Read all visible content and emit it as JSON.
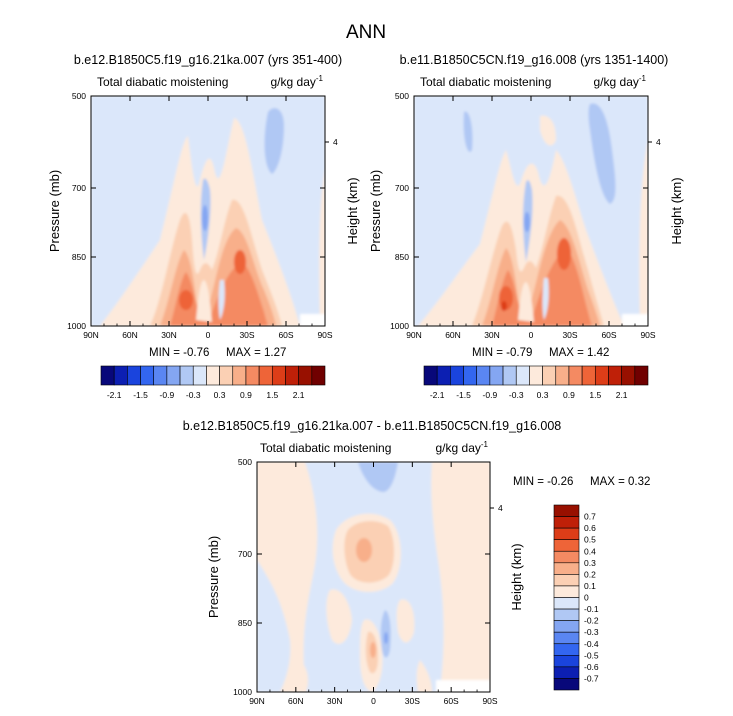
{
  "figure": {
    "title": "ANN"
  },
  "chart_data": [
    {
      "type": "heatmap",
      "title": "b.e12.B1850C5.f19_g16.21ka.007 (yrs 351-400)",
      "left_label": "Total diabatic moistening",
      "right_label": "g/kg day",
      "right_label_sup": "-1",
      "ylabel": "Pressure (mb)",
      "ylabel_right": "Height (km)",
      "x_ticks": [
        "90N",
        "60N",
        "30N",
        "0",
        "30S",
        "60S",
        "90S"
      ],
      "x_values": [
        90,
        60,
        30,
        0,
        -30,
        -60,
        -90
      ],
      "y_ticks": [
        "500",
        "700",
        "850",
        "1000"
      ],
      "y_values": [
        500,
        700,
        850,
        1000
      ],
      "ylim": [
        500,
        1000
      ],
      "right_ticks": [
        "4"
      ],
      "right_tick_values": [
        600
      ],
      "min_label": "MIN =  -0.76",
      "max_label": "MAX =   1.27"
    },
    {
      "type": "heatmap",
      "title": "b.e11.B1850C5CN.f19_g16.008 (yrs 1351-1400)",
      "left_label": "Total diabatic moistening",
      "right_label": "g/kg day",
      "right_label_sup": "-1",
      "ylabel": "Pressure (mb)",
      "ylabel_right": "Height (km)",
      "x_ticks": [
        "90N",
        "60N",
        "30N",
        "0",
        "30S",
        "60S",
        "90S"
      ],
      "x_values": [
        90,
        60,
        30,
        0,
        -30,
        -60,
        -90
      ],
      "y_ticks": [
        "500",
        "700",
        "850",
        "1000"
      ],
      "y_values": [
        500,
        700,
        850,
        1000
      ],
      "ylim": [
        500,
        1000
      ],
      "right_ticks": [
        "4"
      ],
      "right_tick_values": [
        600
      ],
      "min_label": "MIN =  -0.79",
      "max_label": "MAX =   1.42"
    },
    {
      "type": "heatmap",
      "title": "b.e12.B1850C5.f19_g16.21ka.007 - b.e11.B1850C5CN.f19_g16.008",
      "left_label": "Total diabatic moistening",
      "right_label": "g/kg day",
      "right_label_sup": "-1",
      "ylabel": "Pressure (mb)",
      "ylabel_right": "Height (km)",
      "x_ticks": [
        "90N",
        "60N",
        "30N",
        "0",
        "30S",
        "60S",
        "90S"
      ],
      "x_values": [
        90,
        60,
        30,
        0,
        -30,
        -60,
        -90
      ],
      "y_ticks": [
        "500",
        "700",
        "850",
        "1000"
      ],
      "y_values": [
        500,
        700,
        850,
        1000
      ],
      "ylim": [
        500,
        1000
      ],
      "right_ticks": [
        "4"
      ],
      "right_tick_values": [
        600
      ],
      "min_label": "MIN =  -0.26",
      "max_label": "MAX =   0.32"
    }
  ],
  "colorbars": {
    "top": {
      "colors": [
        "#08087a",
        "#0c1fb2",
        "#1a44dd",
        "#3366f0",
        "#5a86f2",
        "#84a6f2",
        "#b0c8f4",
        "#dbe7fa",
        "#fdeadc",
        "#fbd0b4",
        "#f8af8a",
        "#f48a62",
        "#ee6438",
        "#dd3d18",
        "#bf2008",
        "#981000",
        "#700000"
      ],
      "labels": [
        "-2.1",
        "-1.5",
        "-0.9",
        "-0.3",
        "0.3",
        "0.9",
        "1.5",
        "2.1"
      ]
    },
    "diff": {
      "colors": [
        "#08087a",
        "#0c1fb2",
        "#1a44dd",
        "#3366f0",
        "#5a86f2",
        "#84a6f2",
        "#b0c8f4",
        "#dbe7fa",
        "#fdeadc",
        "#fbd0b4",
        "#f8af8a",
        "#f48a62",
        "#ee6438",
        "#dd3d18",
        "#bf2008",
        "#981000"
      ],
      "labels": [
        "-0.7",
        "-0.6",
        "-0.5",
        "-0.4",
        "-0.3",
        "-0.2",
        "-0.1",
        "0",
        "0.1",
        "0.2",
        "0.3",
        "0.4",
        "0.5",
        "0.6",
        "0.7"
      ]
    }
  }
}
